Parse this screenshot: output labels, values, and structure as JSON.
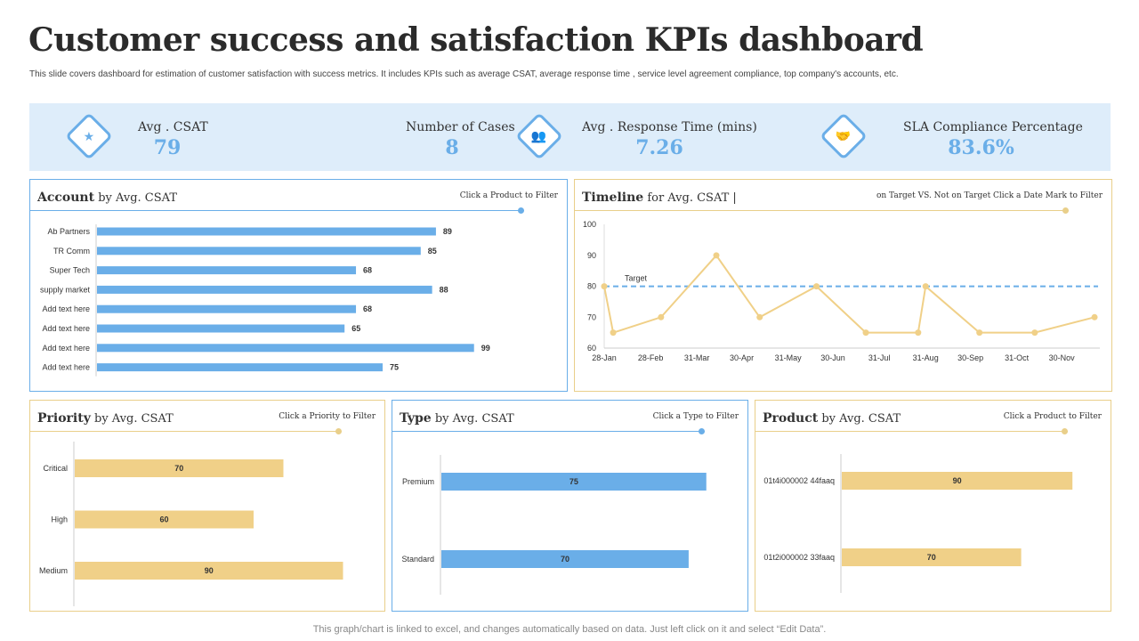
{
  "title": "Customer success and satisfaction KPIs dashboard",
  "subtitle": "This slide covers dashboard for estimation of customer satisfaction with success metrics. It includes KPIs such as average CSAT, average response time , service level agreement compliance, top company's accounts, etc.",
  "colors": {
    "blue": "#6aaee8",
    "gold": "#f0d088",
    "kpi_bg": "#deedfa"
  },
  "kpis": [
    {
      "label": "Avg . CSAT",
      "value": "79",
      "icon": "thumbs-up-stars-icon"
    },
    {
      "label": "Number of Cases",
      "value": "8"
    },
    {
      "label": "Avg . Response Time (mins)",
      "value": "7.26",
      "icon": "team-icon"
    },
    {
      "label": "SLA Compliance Percentage",
      "value": "83.6%",
      "icon": "handshake-icon"
    }
  ],
  "panels": {
    "account": {
      "title_bold": "Account",
      "title_rest": " by Avg. CSAT",
      "hint": "Click a Product to Filter"
    },
    "timeline": {
      "title_bold": "Timeline",
      "title_rest": " for Avg. CSAT |",
      "hint": "on Target VS. Not on Target Click a Date Mark to Filter"
    },
    "priority": {
      "title_bold": "Priority",
      "title_rest": " by Avg. CSAT",
      "hint": "Click a Priority to Filter"
    },
    "type": {
      "title_bold": "Type",
      "title_rest": " by Avg. CSAT",
      "hint": "Click a Type to Filter"
    },
    "product": {
      "title_bold": "Product",
      "title_rest": " by Avg. CSAT",
      "hint": "Click a Product to Filter"
    }
  },
  "chart_data": [
    {
      "id": "account",
      "type": "bar",
      "orientation": "horizontal",
      "categories": [
        "Ab Partners",
        "TR Comm",
        "Super Tech",
        "supply market",
        "Add text here",
        "Add text here",
        "Add text here",
        "Add text here"
      ],
      "values": [
        89,
        85,
        68,
        88,
        68,
        65,
        99,
        75
      ],
      "xlim": [
        0,
        100
      ],
      "color": "#6aaee8"
    },
    {
      "id": "timeline",
      "type": "line",
      "x": [
        "28-Jan",
        "3-Feb",
        "7-Mar",
        "13-Apr",
        "12-May",
        "19-Jun",
        "22-Jul",
        "26-Aug",
        "31-Aug",
        "6-Oct",
        "12-Nov",
        "22-Dec"
      ],
      "y": [
        80,
        65,
        70,
        90,
        70,
        80,
        65,
        65,
        80,
        65,
        65,
        70
      ],
      "ylim": [
        60,
        100
      ],
      "yticks": [
        60,
        70,
        80,
        90,
        100
      ],
      "xticks": [
        "28-Jan",
        "28-Feb",
        "31-Mar",
        "30-Apr",
        "31-May",
        "30-Jun",
        "31-Jul",
        "31-Aug",
        "30-Sep",
        "31-Oct",
        "30-Nov"
      ],
      "target": {
        "label": "Target",
        "value": 80,
        "color": "#6aaee8"
      },
      "color": "#f0d088"
    },
    {
      "id": "priority",
      "type": "bar",
      "orientation": "horizontal",
      "categories": [
        "Critical",
        "High",
        "Medium"
      ],
      "values": [
        70,
        60,
        90
      ],
      "xlim": [
        0,
        100
      ],
      "color": "#f0d088"
    },
    {
      "id": "type",
      "type": "bar",
      "orientation": "horizontal",
      "categories": [
        "Premium",
        "Standard"
      ],
      "values": [
        75,
        70
      ],
      "xlim": [
        0,
        100
      ],
      "color": "#6aaee8"
    },
    {
      "id": "product",
      "type": "bar",
      "orientation": "horizontal",
      "categories": [
        "01t4i000002 44faaq",
        "01t2i000002 33faaq"
      ],
      "values": [
        90,
        70
      ],
      "xlim": [
        0,
        100
      ],
      "color": "#f0d088"
    }
  ],
  "footer": "This graph/chart is linked to excel,  and changes automatically based on data. Just left click on it and select “Edit Data”."
}
